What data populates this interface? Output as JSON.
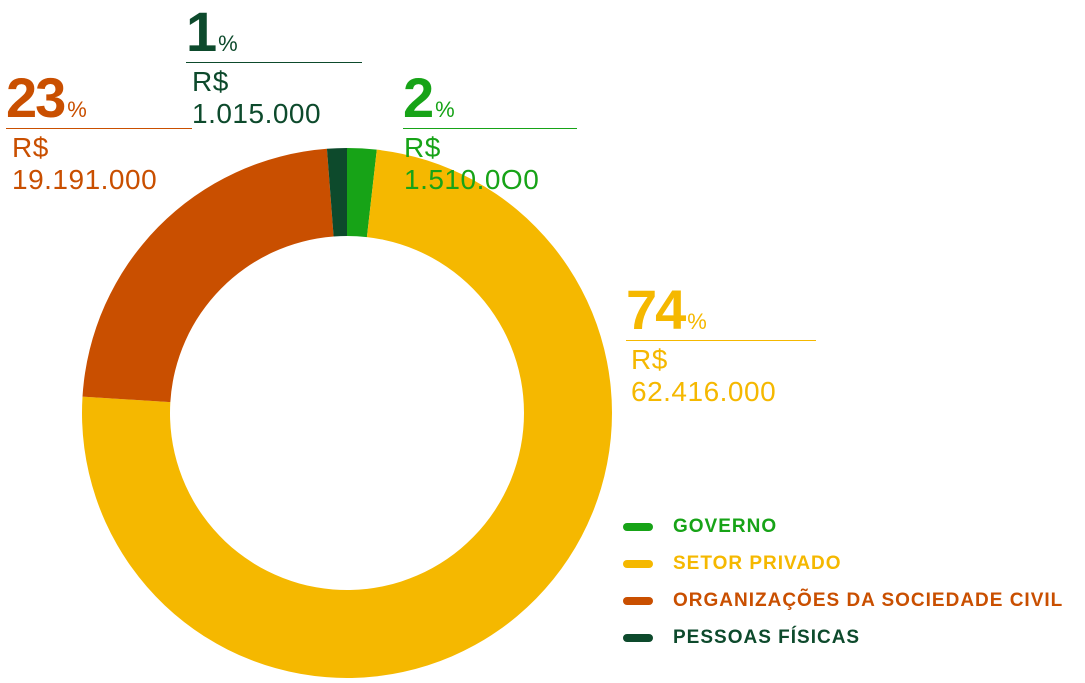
{
  "chart_data": {
    "type": "donut",
    "title": "",
    "slices": [
      {
        "label": "GOVERNO",
        "percent": 2,
        "percent_symbol": "%",
        "amount": "R$ 1.510.0O0",
        "value": 1510000,
        "color": "#17a317"
      },
      {
        "label": "SETOR PRIVADO",
        "percent": 74,
        "percent_symbol": "%",
        "amount": "R$ 62.416.000",
        "value": 62416000,
        "color": "#f5b800"
      },
      {
        "label": "ORGANIZAÇÕES DA SOCIEDADE CIVIL",
        "percent": 23,
        "percent_symbol": "%",
        "amount": "R$ 19.191.000",
        "value": 19191000,
        "color": "#c94f00"
      },
      {
        "label": "PESSOAS FÍSICAS",
        "percent": 1,
        "percent_symbol": "%",
        "amount": "R$ 1.015.000",
        "value": 1015000,
        "color": "#0d4a2c"
      }
    ],
    "start_angle_deg": 0,
    "direction": "clockwise",
    "legend_position": "bottom-right"
  }
}
